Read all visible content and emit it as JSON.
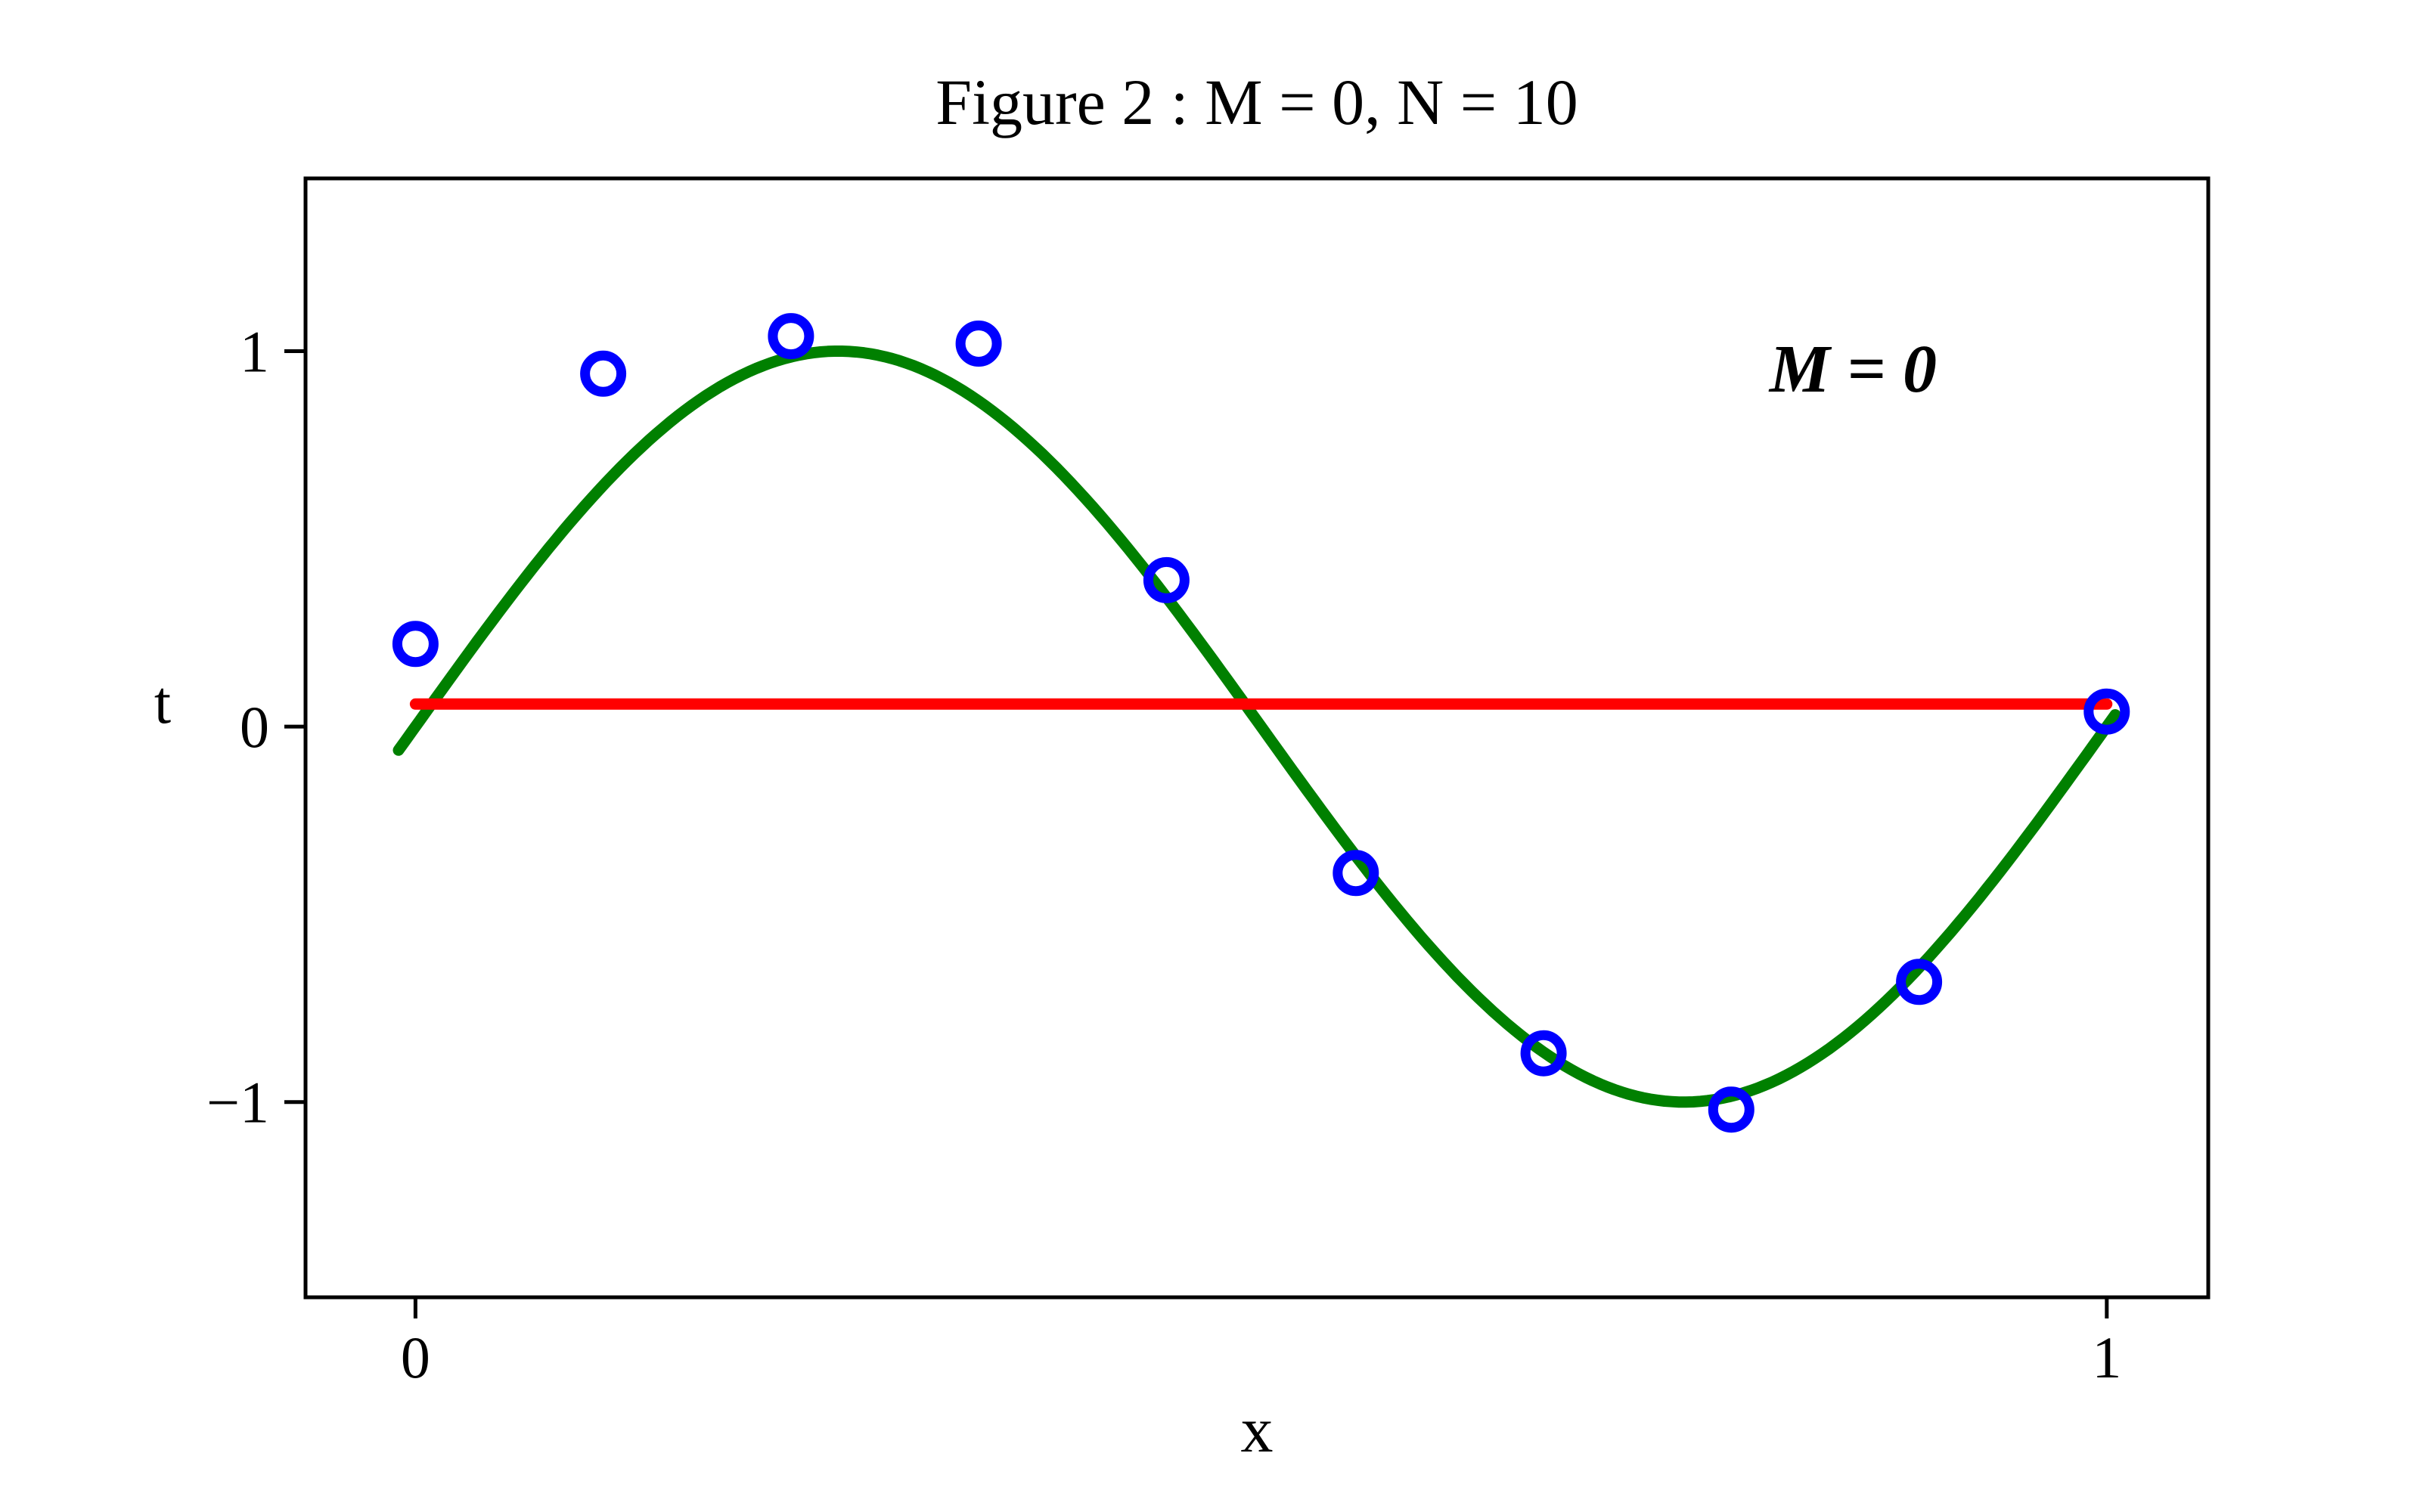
{
  "figure": {
    "title": "Figure 2 : M = 0, N = 10"
  },
  "chart_data": {
    "type": "scatter",
    "title": "Figure 2 : M = 0, N = 10",
    "xlabel": "x",
    "ylabel": "t",
    "xlim": [
      -0.065,
      1.06
    ],
    "ylim": [
      -1.52,
      1.46
    ],
    "xticks": [
      0,
      1
    ],
    "yticks": [
      -1,
      0,
      1
    ],
    "grid": false,
    "legend": null,
    "annotation": {
      "text": "M = 0",
      "x": 0.85,
      "y": 0.95,
      "color": "#000000"
    },
    "series": [
      {
        "name": "true function sin(2*pi*x)",
        "kind": "sine",
        "color": "#008000",
        "amplitude": 1,
        "cycles": 1,
        "x_start": -0.01,
        "x_end": 1.005,
        "samples": 240,
        "line_width": 15
      },
      {
        "name": "fitted constant polynomial M=0",
        "kind": "line",
        "color": "#ff0000",
        "x": [
          0.0,
          1.0
        ],
        "y": [
          0.06,
          0.06
        ],
        "line_width": 15
      },
      {
        "name": "training data points",
        "kind": "scatter",
        "color": "#0000ff",
        "x": [
          0.0,
          0.111,
          0.222,
          0.333,
          0.444,
          0.556,
          0.667,
          0.778,
          0.889,
          1.0
        ],
        "y": [
          0.22,
          0.94,
          1.04,
          1.02,
          0.39,
          -0.39,
          -0.87,
          -1.02,
          -0.68,
          0.04
        ],
        "marker_radius": 24,
        "marker_edge_width": 13
      }
    ]
  }
}
